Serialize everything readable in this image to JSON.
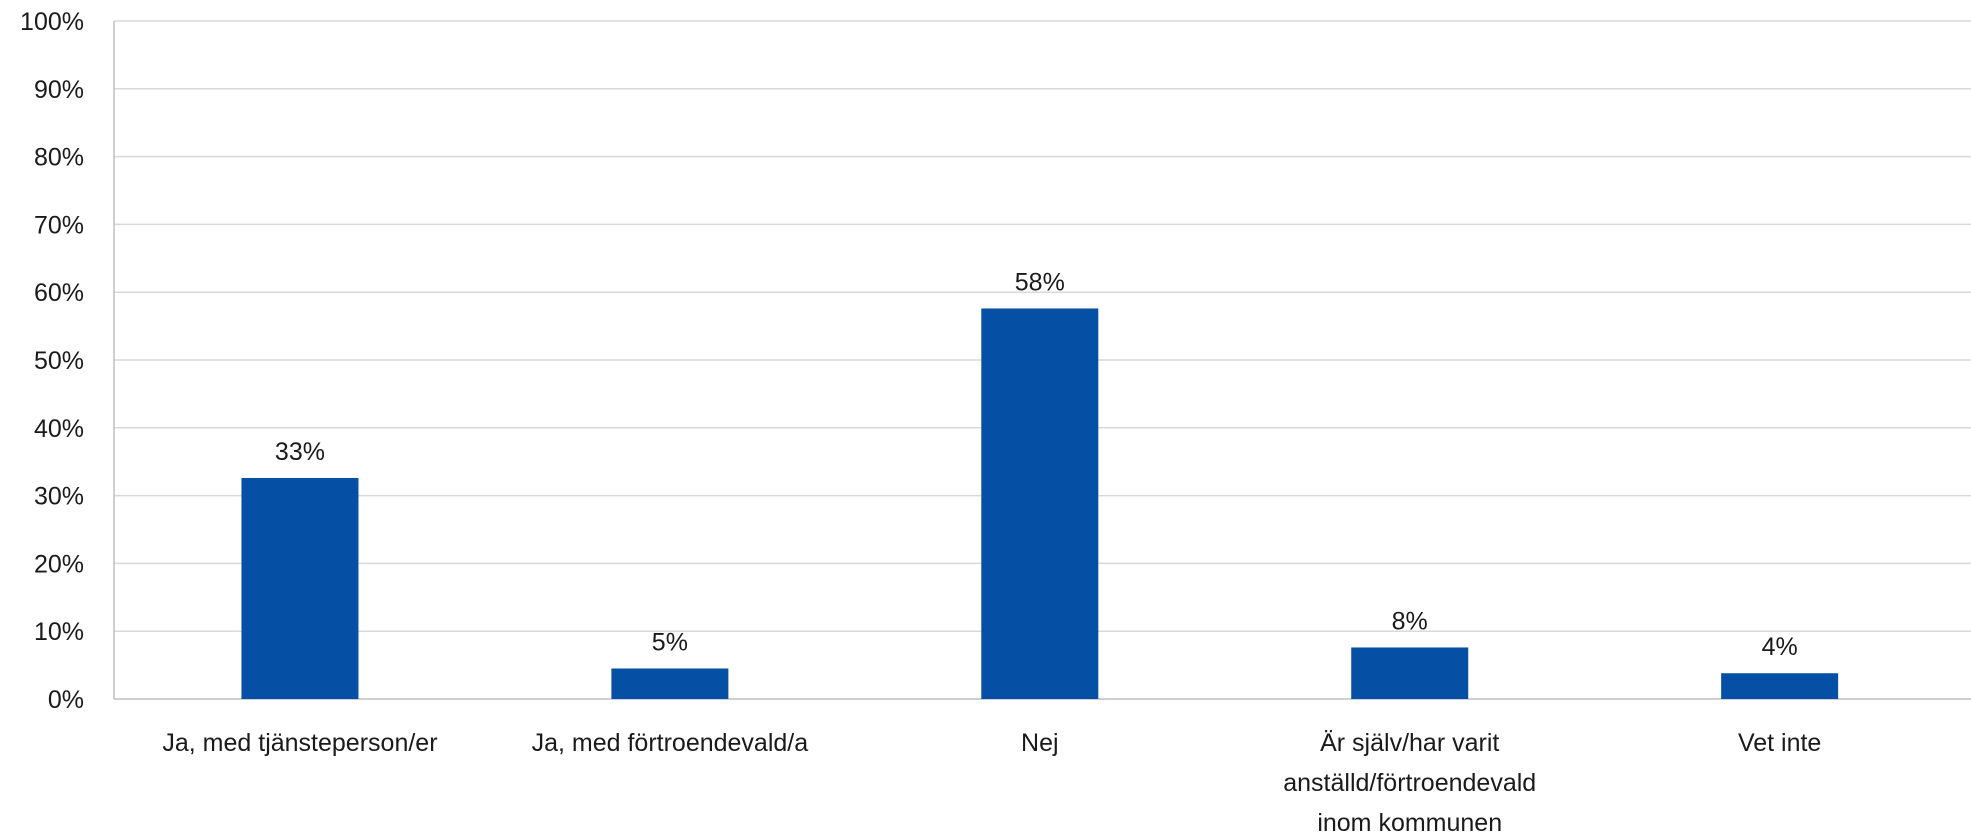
{
  "chart_data": {
    "type": "bar",
    "title": "",
    "xlabel": "",
    "ylabel": "",
    "ylim": [
      0,
      100
    ],
    "y_tick_step": 10,
    "y_tick_format": "percent",
    "grid": true,
    "legend": "none",
    "bar_color": "#0550a4",
    "categories": [
      "Ja, med tjänsteperson/er",
      "Ja, med förtroendevald/a",
      "Nej",
      "Är själv/har varit anställd/förtroendevald inom kommunen",
      "Vet inte"
    ],
    "category_label_lines": [
      [
        "Ja, med tjänsteperson/er"
      ],
      [
        "Ja, med förtroendevald/a"
      ],
      [
        "Nej"
      ],
      [
        "Är själv/har varit",
        "anställd/förtroendevald",
        "inom kommunen"
      ],
      [
        "Vet inte"
      ]
    ],
    "values": [
      32.6,
      4.5,
      57.6,
      7.6,
      3.8
    ],
    "data_labels": [
      "33%",
      "5%",
      "58%",
      "8%",
      "4%"
    ],
    "y_tick_labels": [
      "0%",
      "10%",
      "20%",
      "30%",
      "40%",
      "50%",
      "60%",
      "70%",
      "80%",
      "90%",
      "100%"
    ]
  }
}
